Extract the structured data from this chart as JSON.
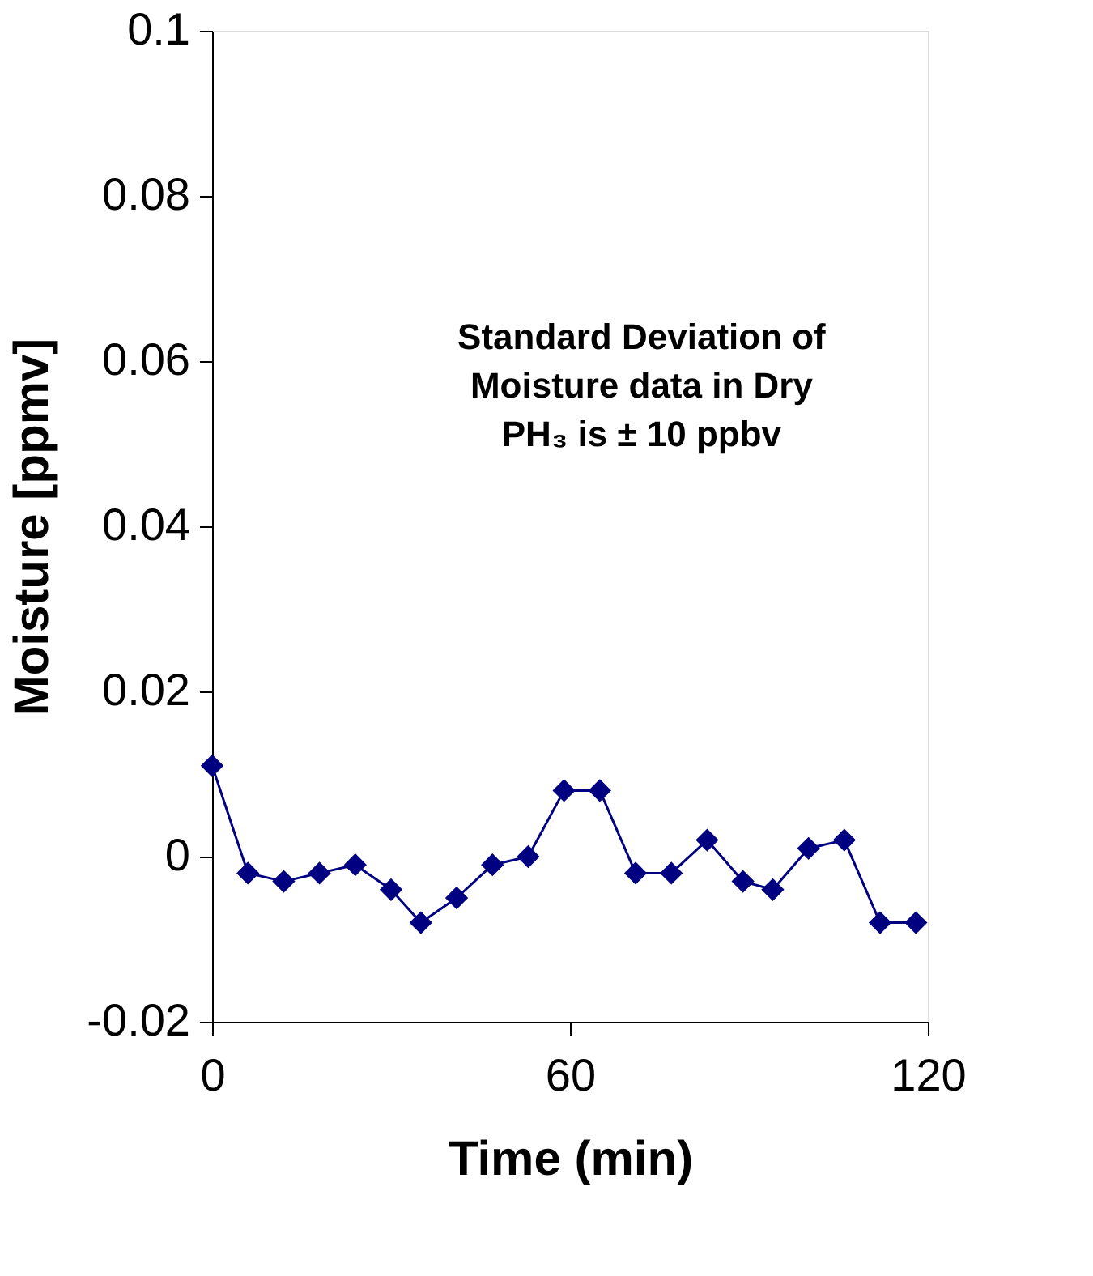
{
  "chart_data": {
    "type": "line",
    "xlabel": "Time (min)",
    "ylabel": "Moisture [ppmv]",
    "annotations": [
      "Standard Deviation of Moisture data in Dry PH₃ is  ± 10 ppbv"
    ],
    "x": [
      0,
      6,
      12,
      18,
      24,
      30,
      35,
      41,
      47,
      53,
      59,
      65,
      71,
      77,
      83,
      89,
      94,
      100,
      106,
      112,
      118
    ],
    "series": [
      {
        "color": "#000080",
        "values": [
          0.011,
          -0.002,
          -0.003,
          -0.002,
          -0.001,
          -0.004,
          -0.008,
          -0.005,
          -0.001,
          0,
          0.008,
          0.008,
          -0.002,
          -0.002,
          0.002,
          -0.003,
          -0.004,
          0.001,
          0.002,
          -0.008,
          -0.008
        ]
      }
    ],
    "xlim": [
      0,
      120
    ],
    "xticks": [
      0,
      60,
      120
    ],
    "ylim": [
      -0.02,
      0.1
    ],
    "yticks": [
      -0.02,
      0,
      0.02,
      0.04,
      0.06,
      0.08,
      0.1
    ],
    "grid": false,
    "legend": false,
    "marker": "diamond",
    "line_style": "solid"
  }
}
